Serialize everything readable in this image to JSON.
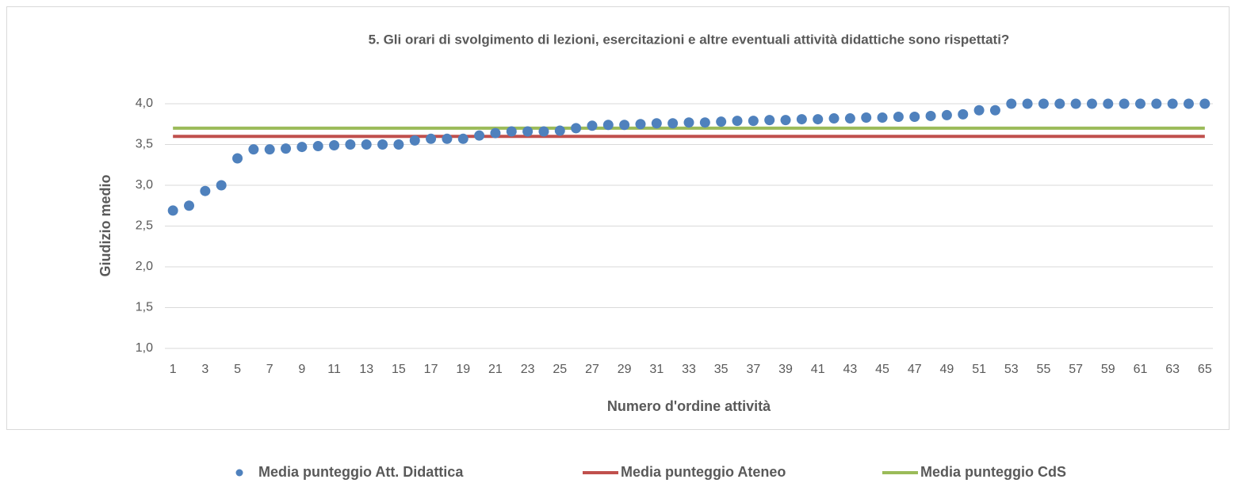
{
  "chart_data": {
    "type": "scatter",
    "title": "5. Gli orari di svolgimento di lezioni, esercitazioni e altre eventuali attività didattiche sono rispettati?",
    "x_label": "Numero d'ordine attività",
    "y_label": "Giudizio medio",
    "categories": [
      1,
      null,
      3,
      null,
      5,
      null,
      7,
      null,
      9,
      null,
      11,
      null,
      13,
      null,
      15,
      null,
      17,
      null,
      19,
      null,
      21,
      null,
      23,
      null,
      25,
      null,
      27,
      null,
      29,
      null,
      31,
      null,
      33,
      null,
      35,
      null,
      37,
      null,
      39,
      null,
      41,
      null,
      43,
      null,
      45,
      null,
      47,
      null,
      49,
      null,
      51,
      null,
      53,
      null,
      55,
      null,
      57,
      null,
      59,
      null,
      61,
      null,
      63,
      null,
      65
    ],
    "series": [
      {
        "name": "Media punteggio Att. Didattica",
        "type": "scatter",
        "color": "#4f81bd",
        "values": [
          2.69,
          2.75,
          2.93,
          3.0,
          3.33,
          3.44,
          3.44,
          3.45,
          3.47,
          3.48,
          3.49,
          3.5,
          3.5,
          3.5,
          3.5,
          3.55,
          3.57,
          3.57,
          3.57,
          3.61,
          3.64,
          3.66,
          3.66,
          3.66,
          3.67,
          3.7,
          3.73,
          3.74,
          3.74,
          3.75,
          3.76,
          3.76,
          3.77,
          3.77,
          3.78,
          3.79,
          3.79,
          3.8,
          3.8,
          3.81,
          3.81,
          3.82,
          3.82,
          3.83,
          3.83,
          3.84,
          3.84,
          3.85,
          3.86,
          3.87,
          3.92,
          3.92,
          4.0,
          4.0,
          4.0,
          4.0,
          4.0,
          4.0,
          4.0,
          4.0,
          4.0,
          4.0,
          4.0,
          4.0,
          4.0
        ]
      },
      {
        "name": "Media punteggio Ateneo",
        "type": "line",
        "color": "#c0504d",
        "values": [
          3.6,
          3.6,
          3.6,
          3.6,
          3.6,
          3.6,
          3.6,
          3.6,
          3.6,
          3.6,
          3.6,
          3.6,
          3.6,
          3.6,
          3.6,
          3.6,
          3.6,
          3.6,
          3.6,
          3.6,
          3.6,
          3.6,
          3.6,
          3.6,
          3.6,
          3.6,
          3.6,
          3.6,
          3.6,
          3.6,
          3.6,
          3.6,
          3.6,
          3.6,
          3.6,
          3.6,
          3.6,
          3.6,
          3.6,
          3.6,
          3.6,
          3.6,
          3.6,
          3.6,
          3.6,
          3.6,
          3.6,
          3.6,
          3.6,
          3.6,
          3.6,
          3.6,
          3.6,
          3.6,
          3.6,
          3.6,
          3.6,
          3.6,
          3.6,
          3.6,
          3.6,
          3.6,
          3.6,
          3.6,
          3.6
        ]
      },
      {
        "name": "Media punteggio CdS",
        "type": "line",
        "color": "#9bbb59",
        "values": [
          3.7,
          3.7,
          3.7,
          3.7,
          3.7,
          3.7,
          3.7,
          3.7,
          3.7,
          3.7,
          3.7,
          3.7,
          3.7,
          3.7,
          3.7,
          3.7,
          3.7,
          3.7,
          3.7,
          3.7,
          3.7,
          3.7,
          3.7,
          3.7,
          3.7,
          3.7,
          3.7,
          3.7,
          3.7,
          3.7,
          3.7,
          3.7,
          3.7,
          3.7,
          3.7,
          3.7,
          3.7,
          3.7,
          3.7,
          3.7,
          3.7,
          3.7,
          3.7,
          3.7,
          3.7,
          3.7,
          3.7,
          3.7,
          3.7,
          3.7,
          3.7,
          3.7,
          3.7,
          3.7,
          3.7,
          3.7,
          3.7,
          3.7,
          3.7,
          3.7,
          3.7,
          3.7,
          3.7,
          3.7,
          3.7
        ]
      }
    ],
    "ylim": [
      1,
      4
    ],
    "yticks": [
      {
        "value": 1,
        "label": "1,0"
      },
      {
        "value": 1.5,
        "label": "1,5"
      },
      {
        "value": 2,
        "label": "2,0"
      },
      {
        "value": 2.5,
        "label": "2,5"
      },
      {
        "value": 3,
        "label": "3,0"
      },
      {
        "value": 3.5,
        "label": "3,5"
      },
      {
        "value": 4,
        "label": "4,0"
      }
    ],
    "grid": true,
    "legend": "bottom"
  }
}
